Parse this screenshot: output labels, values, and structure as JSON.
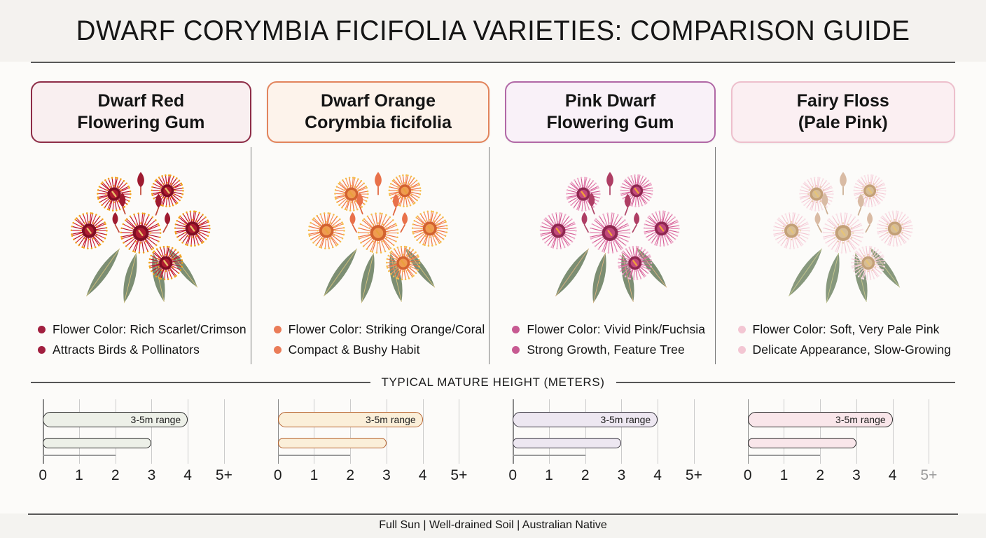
{
  "title": "DWARF CORYMBIA FICIFOLIA VARIETIES: COMPARISON GUIDE",
  "height_section_title": "TYPICAL MATURE HEIGHT (METERS)",
  "footer_text": "Full Sun | Well-drained Soil | Australian Native",
  "varieties": [
    {
      "line1": "Dwarf Red",
      "line2": "Flowering Gum",
      "card_border": "#8E2D47",
      "card_bg": "#F9EFF0",
      "bullet_color": "#A11F3F",
      "bullets": [
        "Flower Color: Rich Scarlet/Crimson",
        "Attracts Birds & Pollinators"
      ],
      "bar_fill": "#EDF0E8",
      "bar_border": "#2E2E2E",
      "axis_last_tick": "#1d1d1d",
      "flower": {
        "stamenA": "#B5122B",
        "stamenB": "#D02038",
        "tip": "#F2A31C",
        "ringOuter": "#7E0E22",
        "ringInner": "#B01C31",
        "dots": "#F2A31C",
        "bud": "#9E1A30",
        "stem": "#C24A3A",
        "leaf": "#7C8E73",
        "leafRib": "#D8C47E",
        "stigma": "#E9C06A"
      }
    },
    {
      "line1": "Dwarf Orange",
      "line2": "Corymbia ficifolia",
      "card_border": "#E2845C",
      "card_bg": "#FDF3EB",
      "bullet_color": "#EA7C58",
      "bullets": [
        "Flower Color: Striking Orange/Coral",
        "Compact & Bushy Habit"
      ],
      "bar_fill": "#FBEFD9",
      "bar_border": "#B5622F",
      "axis_last_tick": "#1d1d1d",
      "flower": {
        "stamenA": "#EF7244",
        "stamenB": "#F68D5C",
        "tip": "#F6BE4E",
        "ringOuter": "#D2622F",
        "ringInner": "#F09B52",
        "dots": "#F6BE4E",
        "bud": "#E8714A",
        "stem": "#E0643C",
        "leaf": "#7C8E73",
        "leafRib": "#D8C47E",
        "stigma": "#E9A03C"
      }
    },
    {
      "line1": "Pink Dwarf",
      "line2": "Flowering Gum",
      "card_border": "#B168A6",
      "card_bg": "#F9F1F8",
      "bullet_color": "#C75A92",
      "bullets": [
        "Flower Color: Vivid Pink/Fuchsia",
        "Strong Growth, Feature Tree"
      ],
      "bar_fill": "#EDE7F1",
      "bar_border": "#3A3740",
      "axis_last_tick": "#1d1d1d",
      "flower": {
        "stamenA": "#D45C94",
        "stamenB": "#E27AAC",
        "tip": "#EFB2CE",
        "ringOuter": "#8E2750",
        "ringInner": "#C2497C",
        "dots": "#F0B6D2",
        "bud": "#AE3E64",
        "stem": "#B0486A",
        "leaf": "#7C8E73",
        "leafRib": "#E0B684",
        "stigma": "#F0A038"
      }
    },
    {
      "line1": "Fairy Floss",
      "line2": "(Pale Pink)",
      "card_border": "#EDBFCC",
      "card_bg": "#FBEFF2",
      "bullet_color": "#F3C6D3",
      "bullets": [
        "Flower Color: Soft, Very Pale Pink",
        "Delicate Appearance, Slow-Growing"
      ],
      "bar_fill": "#F9E6EA",
      "bar_border": "#2E2E2E",
      "axis_last_tick": "#9a9a9a",
      "flower": {
        "stamenA": "#F3C6D2",
        "stamenB": "#F7D6DF",
        "tip": "#F9E2E8",
        "ringOuter": "#C3A077",
        "ringInner": "#D7BD96",
        "dots": "#E9CBA4",
        "bud": "#D9BBA4",
        "stem": "#CBAE92",
        "leaf": "#87987D",
        "leafRib": "#C9C98F",
        "stigma": "#E6C478"
      }
    }
  ],
  "chart_data": {
    "type": "bar",
    "orientation": "horizontal",
    "title": "TYPICAL MATURE HEIGHT (METERS)",
    "x_ticks": [
      "0",
      "1",
      "2",
      "3",
      "4",
      "5+"
    ],
    "x_range": [
      0,
      5
    ],
    "grid": true,
    "series": [
      {
        "name": "Dwarf Red Flowering Gum",
        "range_label": "3-5m range",
        "range_bar": [
          0,
          4
        ],
        "secondary_bar": [
          0,
          3
        ],
        "baseline_extent": [
          0,
          2
        ]
      },
      {
        "name": "Dwarf Orange Corymbia ficifolia",
        "range_label": "3-5m range",
        "range_bar": [
          0,
          4
        ],
        "secondary_bar": [
          0,
          3
        ],
        "baseline_extent": [
          0,
          2
        ]
      },
      {
        "name": "Pink Dwarf Flowering Gum",
        "range_label": "3-5m range",
        "range_bar": [
          0,
          4
        ],
        "secondary_bar": [
          0,
          3
        ],
        "baseline_extent": [
          0,
          2
        ]
      },
      {
        "name": "Fairy Floss (Pale Pink)",
        "range_label": "3-5m range",
        "range_bar": [
          0,
          4
        ],
        "secondary_bar": [
          0,
          3
        ],
        "baseline_extent": [
          0,
          2
        ]
      }
    ]
  }
}
